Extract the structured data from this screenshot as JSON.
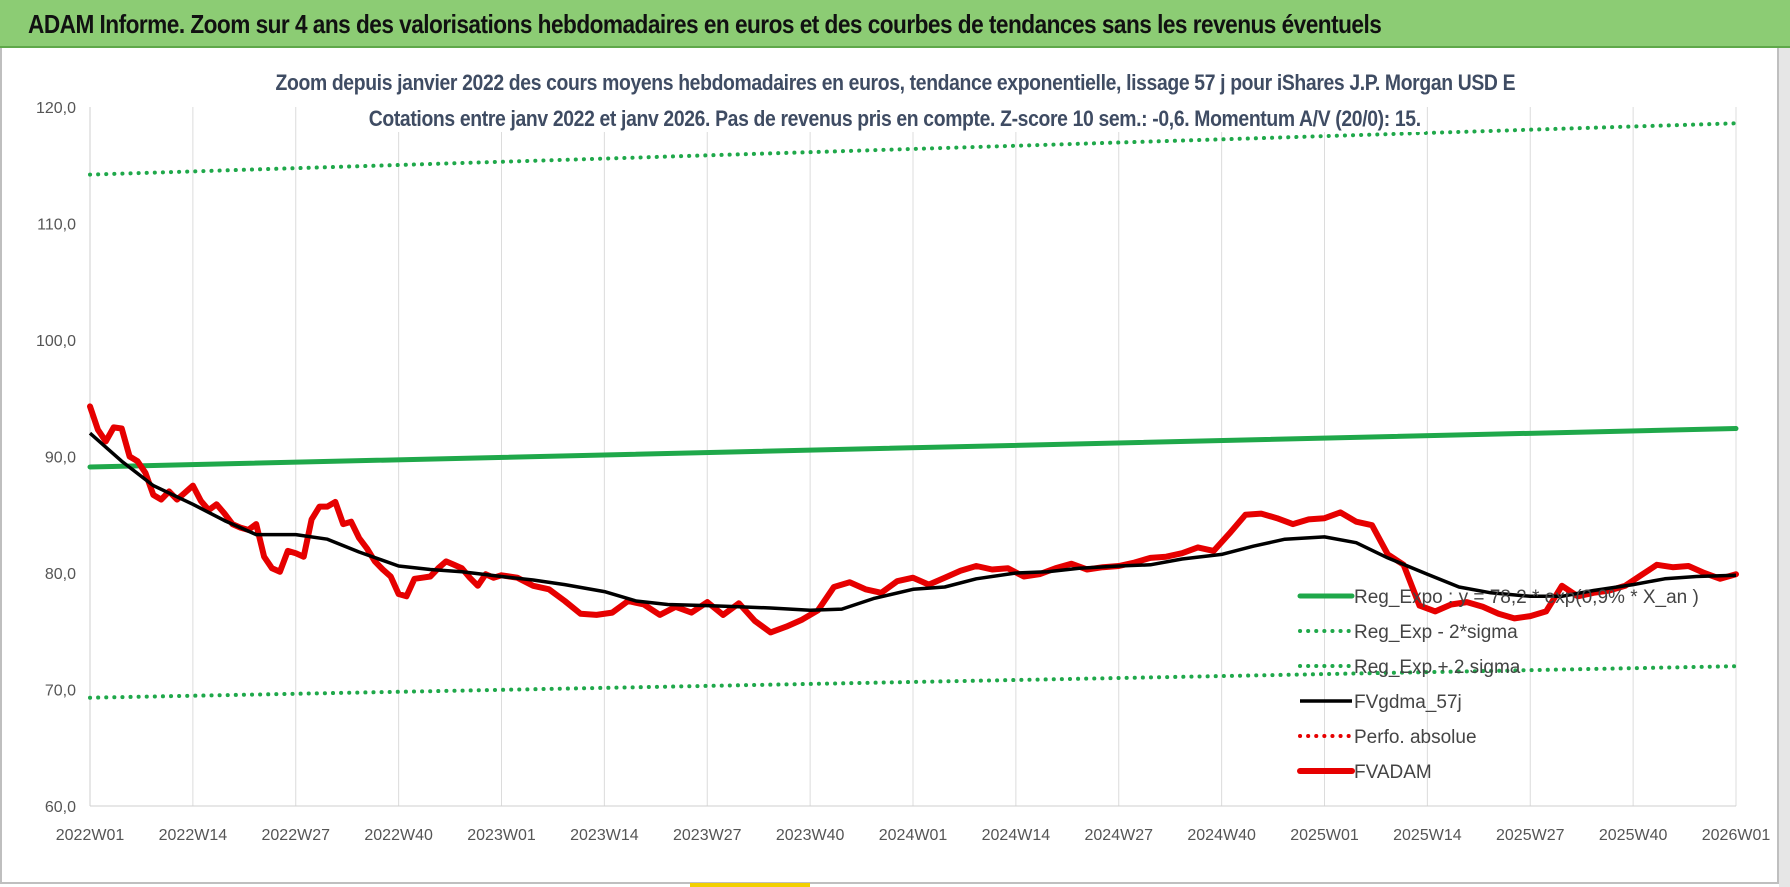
{
  "header": {
    "title": "ADAM Informe. Zoom sur 4 ans des valorisations hebdomadaires en euros et des courbes de tendances sans les revenus éventuels"
  },
  "chart_data": {
    "type": "line",
    "title_line1": "Zoom depuis janvier 2022 des cours moyens hebdomadaires en euros, tendance exponentielle, lissage 57 j pour iShares J.P. Morgan USD E",
    "title_line2": "Cotations entre janv 2022 et janv 2026. Pas de revenus pris en compte. Z-score 10 sem.: -0,6. Momentum A/V (20/0): 15.",
    "categories": [
      "2022W01",
      "2022W14",
      "2022W27",
      "2022W40",
      "2023W01",
      "2023W14",
      "2023W27",
      "2023W40",
      "2024W01",
      "2024W14",
      "2024W27",
      "2024W40",
      "2025W01",
      "2025W14",
      "2025W27",
      "2025W40",
      "2026W01"
    ],
    "ylim": [
      60,
      120
    ],
    "yticks": [
      "60,0",
      "70,0",
      "80,0",
      "90,0",
      "100,0",
      "110,0",
      "120,0"
    ],
    "grid": "vertical",
    "legend_position": "bottom-right",
    "series": [
      {
        "name": "Reg_Expo : y = 78,2 * exp(0,9% * X_an )",
        "color": "#1fa84a",
        "style": "solid-thick",
        "x": [
          0,
          208
        ],
        "y": [
          89.1,
          92.4
        ]
      },
      {
        "name": "Reg_Exp - 2*sigma",
        "color": "#1fa84a",
        "style": "dotted",
        "x": [
          0,
          208
        ],
        "y": [
          69.3,
          72.0
        ]
      },
      {
        "name": "Reg_Exp + 2 sigma",
        "color": "#1fa84a",
        "style": "dotted",
        "x": [
          0,
          208
        ],
        "y": [
          114.2,
          118.6
        ]
      },
      {
        "name": "FVgdma_57j",
        "color": "#000000",
        "style": "solid",
        "x": [
          0,
          4,
          8,
          13,
          17,
          21,
          26,
          30,
          34,
          39,
          43,
          47,
          52,
          56,
          60,
          65,
          69,
          73,
          78,
          82,
          86,
          91,
          95,
          99,
          104,
          108,
          112,
          117,
          121,
          125,
          130,
          134,
          138,
          143,
          147,
          151,
          156,
          160,
          164,
          169,
          173,
          177,
          182,
          186,
          190,
          195,
          199,
          203,
          208
        ],
        "y": [
          92.0,
          89.6,
          87.5,
          85.9,
          84.5,
          83.3,
          83.3,
          82.9,
          81.8,
          80.6,
          80.3,
          80.1,
          79.7,
          79.4,
          79.0,
          78.4,
          77.6,
          77.3,
          77.2,
          77.1,
          77.0,
          76.8,
          76.9,
          77.8,
          78.6,
          78.8,
          79.5,
          80.0,
          80.1,
          80.4,
          80.6,
          80.7,
          81.2,
          81.6,
          82.3,
          82.9,
          83.1,
          82.6,
          81.3,
          79.9,
          78.8,
          78.3,
          78.0,
          78.0,
          78.5,
          79.0,
          79.5,
          79.7,
          79.8
        ]
      },
      {
        "name": "Perfo. absolue",
        "color": "#e60000",
        "style": "dotted",
        "x": [],
        "y": []
      },
      {
        "name": "FVADAM",
        "color": "#e60000",
        "style": "solid-thick",
        "x": [
          0,
          1,
          2,
          3,
          4,
          5,
          6,
          7,
          8,
          9,
          10,
          11,
          12,
          13,
          14,
          15,
          16,
          17,
          18,
          19,
          20,
          21,
          22,
          23,
          24,
          25,
          26,
          27,
          28,
          29,
          30,
          31,
          32,
          33,
          34,
          35,
          36,
          37,
          38,
          39,
          40,
          41,
          42,
          43,
          44,
          45,
          46,
          47,
          48,
          49,
          50,
          51,
          52,
          54,
          56,
          58,
          60,
          62,
          64,
          66,
          68,
          70,
          72,
          74,
          76,
          78,
          80,
          82,
          84,
          86,
          88,
          90,
          92,
          94,
          96,
          98,
          100,
          102,
          104,
          106,
          108,
          110,
          112,
          114,
          116,
          118,
          120,
          122,
          124,
          126,
          128,
          130,
          132,
          134,
          136,
          138,
          140,
          142,
          144,
          146,
          148,
          150,
          152,
          154,
          156,
          158,
          160,
          162,
          164,
          166,
          168,
          170,
          172,
          174,
          176,
          178,
          180,
          182,
          184,
          186,
          188,
          190,
          192,
          194,
          196,
          198,
          200,
          202,
          204,
          206,
          208
        ],
        "y": [
          94.3,
          92.3,
          91.3,
          92.5,
          92.4,
          90.0,
          89.6,
          88.6,
          86.7,
          86.3,
          87.0,
          86.3,
          86.9,
          87.5,
          86.2,
          85.4,
          85.9,
          85.1,
          84.2,
          83.9,
          83.7,
          84.2,
          81.4,
          80.4,
          80.1,
          81.9,
          81.7,
          81.4,
          84.6,
          85.7,
          85.7,
          86.1,
          84.2,
          84.4,
          83.0,
          82.1,
          81.0,
          80.3,
          79.7,
          78.2,
          78.0,
          79.5,
          79.6,
          79.7,
          80.4,
          81.0,
          80.7,
          80.4,
          79.6,
          78.9,
          79.9,
          79.6,
          79.8,
          79.6,
          78.9,
          78.6,
          77.6,
          76.5,
          76.4,
          76.6,
          77.6,
          77.3,
          76.4,
          77.1,
          76.6,
          77.5,
          76.4,
          77.4,
          75.9,
          74.9,
          75.4,
          76.0,
          76.8,
          78.8,
          79.2,
          78.6,
          78.3,
          79.3,
          79.6,
          79.0,
          79.6,
          80.2,
          80.6,
          80.3,
          80.4,
          79.7,
          79.9,
          80.4,
          80.8,
          80.3,
          80.5,
          80.6,
          80.9,
          81.3,
          81.4,
          81.7,
          82.2,
          81.9,
          83.4,
          85.0,
          85.1,
          84.7,
          84.2,
          84.6,
          84.7,
          85.2,
          84.4,
          84.1,
          81.6,
          80.7,
          77.2,
          76.7,
          77.3,
          77.5,
          77.1,
          76.5,
          76.1,
          76.3,
          76.7,
          78.9,
          78.0,
          78.3,
          78.5,
          78.9,
          79.8,
          80.7,
          80.5,
          80.6,
          80.0,
          79.5,
          79.9
        ]
      }
    ]
  }
}
